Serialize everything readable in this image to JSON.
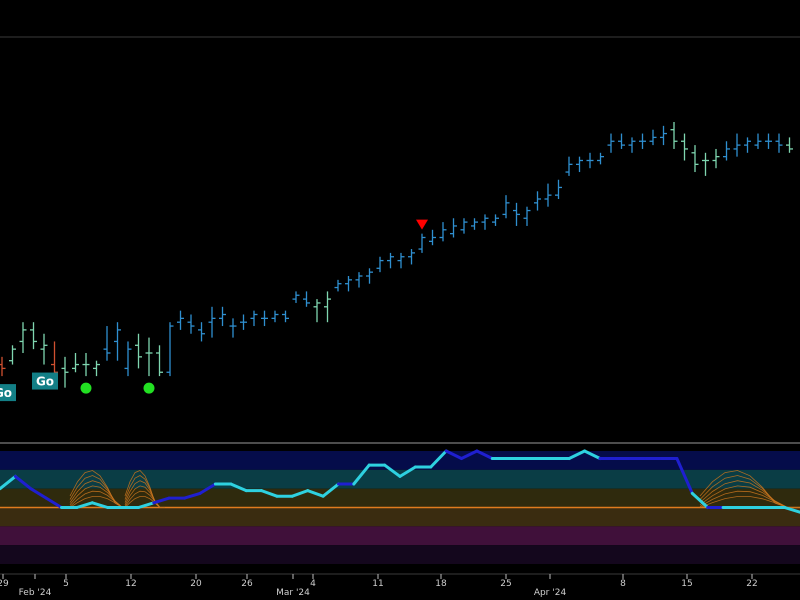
{
  "chart_data": [
    {
      "type": "ohlc",
      "panel": "price",
      "ylim": [
        0,
        100
      ],
      "grid": false,
      "up_color": "#2f8fd0",
      "weak_color": "#7fd6b0",
      "down_color": "#d05030",
      "bars": [
        {
          "i": 0,
          "o": 17,
          "h": 19,
          "l": 14,
          "c": 16,
          "t": "down"
        },
        {
          "i": 1,
          "o": 18,
          "h": 22,
          "l": 17,
          "c": 21,
          "t": "weak"
        },
        {
          "i": 2,
          "o": 23,
          "h": 28,
          "l": 20,
          "c": 26,
          "t": "weak"
        },
        {
          "i": 3,
          "o": 26,
          "h": 28,
          "l": 21,
          "c": 23,
          "t": "weak"
        },
        {
          "i": 4,
          "o": 21,
          "h": 25,
          "l": 17,
          "c": 22,
          "t": "weak"
        },
        {
          "i": 5,
          "o": 17,
          "h": 23,
          "l": 14,
          "c": 15,
          "t": "down"
        },
        {
          "i": 6,
          "o": 16,
          "h": 19,
          "l": 11,
          "c": 15,
          "t": "weak"
        },
        {
          "i": 7,
          "o": 16,
          "h": 20,
          "l": 15,
          "c": 17,
          "t": "weak"
        },
        {
          "i": 8,
          "o": 17,
          "h": 20,
          "l": 14,
          "c": 17,
          "t": "weak"
        },
        {
          "i": 9,
          "o": 16,
          "h": 18,
          "l": 14,
          "c": 17,
          "t": "weak"
        },
        {
          "i": 10,
          "o": 21,
          "h": 27,
          "l": 18,
          "c": 20,
          "t": "up"
        },
        {
          "i": 11,
          "o": 23,
          "h": 28,
          "l": 18,
          "c": 26,
          "t": "up"
        },
        {
          "i": 12,
          "o": 16,
          "h": 23,
          "l": 14,
          "c": 21,
          "t": "up"
        },
        {
          "i": 13,
          "o": 22,
          "h": 25,
          "l": 16,
          "c": 19,
          "t": "weak"
        },
        {
          "i": 14,
          "o": 20,
          "h": 24,
          "l": 14,
          "c": 20,
          "t": "weak"
        },
        {
          "i": 15,
          "o": 20,
          "h": 22,
          "l": 14,
          "c": 15,
          "t": "weak"
        },
        {
          "i": 16,
          "o": 15,
          "h": 28,
          "l": 14,
          "c": 27,
          "t": "up"
        },
        {
          "i": 17,
          "o": 28,
          "h": 31,
          "l": 26,
          "c": 29,
          "t": "up"
        },
        {
          "i": 18,
          "o": 28,
          "h": 30,
          "l": 25,
          "c": 27,
          "t": "up"
        },
        {
          "i": 19,
          "o": 26,
          "h": 28,
          "l": 23,
          "c": 25,
          "t": "up"
        },
        {
          "i": 20,
          "o": 28,
          "h": 32,
          "l": 24,
          "c": 29,
          "t": "up"
        },
        {
          "i": 21,
          "o": 29,
          "h": 32,
          "l": 27,
          "c": 30,
          "t": "up"
        },
        {
          "i": 22,
          "o": 27,
          "h": 29,
          "l": 24,
          "c": 27,
          "t": "up"
        },
        {
          "i": 23,
          "o": 28,
          "h": 30,
          "l": 26,
          "c": 28,
          "t": "up"
        },
        {
          "i": 24,
          "o": 29,
          "h": 31,
          "l": 27,
          "c": 30,
          "t": "up"
        },
        {
          "i": 25,
          "o": 29,
          "h": 31,
          "l": 27,
          "c": 29,
          "t": "up"
        },
        {
          "i": 26,
          "o": 29,
          "h": 31,
          "l": 28,
          "c": 30,
          "t": "up"
        },
        {
          "i": 27,
          "o": 30,
          "h": 31,
          "l": 28,
          "c": 29,
          "t": "up"
        },
        {
          "i": 28,
          "o": 34,
          "h": 36,
          "l": 33,
          "c": 35,
          "t": "up"
        },
        {
          "i": 29,
          "o": 34,
          "h": 36,
          "l": 32,
          "c": 33,
          "t": "up"
        },
        {
          "i": 30,
          "o": 32,
          "h": 34,
          "l": 28,
          "c": 33,
          "t": "weak"
        },
        {
          "i": 31,
          "o": 32,
          "h": 36,
          "l": 28,
          "c": 34,
          "t": "weak"
        },
        {
          "i": 32,
          "o": 37,
          "h": 39,
          "l": 36,
          "c": 38,
          "t": "up"
        },
        {
          "i": 33,
          "o": 38,
          "h": 40,
          "l": 36,
          "c": 39,
          "t": "up"
        },
        {
          "i": 34,
          "o": 39,
          "h": 41,
          "l": 37,
          "c": 40,
          "t": "up"
        },
        {
          "i": 35,
          "o": 40,
          "h": 42,
          "l": 38,
          "c": 41,
          "t": "up"
        },
        {
          "i": 36,
          "o": 42,
          "h": 45,
          "l": 41,
          "c": 44,
          "t": "up"
        },
        {
          "i": 37,
          "o": 44,
          "h": 46,
          "l": 42,
          "c": 45,
          "t": "up"
        },
        {
          "i": 38,
          "o": 44,
          "h": 46,
          "l": 42,
          "c": 45,
          "t": "up"
        },
        {
          "i": 39,
          "o": 45,
          "h": 47,
          "l": 43,
          "c": 46,
          "t": "up"
        },
        {
          "i": 40,
          "o": 47,
          "h": 51,
          "l": 46,
          "c": 50,
          "t": "up"
        },
        {
          "i": 41,
          "o": 49,
          "h": 52,
          "l": 48,
          "c": 50,
          "t": "up"
        },
        {
          "i": 42,
          "o": 50,
          "h": 54,
          "l": 49,
          "c": 52,
          "t": "up"
        },
        {
          "i": 43,
          "o": 51,
          "h": 55,
          "l": 50,
          "c": 53,
          "t": "up"
        },
        {
          "i": 44,
          "o": 52,
          "h": 55,
          "l": 51,
          "c": 54,
          "t": "up"
        },
        {
          "i": 45,
          "o": 53,
          "h": 55,
          "l": 52,
          "c": 54,
          "t": "up"
        },
        {
          "i": 46,
          "o": 54,
          "h": 56,
          "l": 52,
          "c": 55,
          "t": "up"
        },
        {
          "i": 47,
          "o": 54,
          "h": 56,
          "l": 53,
          "c": 55,
          "t": "up"
        },
        {
          "i": 48,
          "o": 56,
          "h": 61,
          "l": 55,
          "c": 59,
          "t": "up"
        },
        {
          "i": 49,
          "o": 57,
          "h": 59,
          "l": 53,
          "c": 56,
          "t": "up"
        },
        {
          "i": 50,
          "o": 55,
          "h": 58,
          "l": 53,
          "c": 57,
          "t": "up"
        },
        {
          "i": 51,
          "o": 59,
          "h": 62,
          "l": 57,
          "c": 60,
          "t": "up"
        },
        {
          "i": 52,
          "o": 60,
          "h": 64,
          "l": 58,
          "c": 61,
          "t": "up"
        },
        {
          "i": 53,
          "o": 61,
          "h": 65,
          "l": 60,
          "c": 63,
          "t": "up"
        },
        {
          "i": 54,
          "o": 67,
          "h": 71,
          "l": 66,
          "c": 69,
          "t": "up"
        },
        {
          "i": 55,
          "o": 69,
          "h": 71,
          "l": 67,
          "c": 70,
          "t": "up"
        },
        {
          "i": 56,
          "o": 70,
          "h": 72,
          "l": 68,
          "c": 70,
          "t": "up"
        },
        {
          "i": 57,
          "o": 70,
          "h": 72,
          "l": 69,
          "c": 71,
          "t": "up"
        },
        {
          "i": 58,
          "o": 74,
          "h": 77,
          "l": 72,
          "c": 75,
          "t": "up"
        },
        {
          "i": 59,
          "o": 75,
          "h": 77,
          "l": 73,
          "c": 74,
          "t": "up"
        },
        {
          "i": 60,
          "o": 74,
          "h": 76,
          "l": 72,
          "c": 75,
          "t": "up"
        },
        {
          "i": 61,
          "o": 75,
          "h": 77,
          "l": 73,
          "c": 75,
          "t": "up"
        },
        {
          "i": 62,
          "o": 75,
          "h": 78,
          "l": 74,
          "c": 76,
          "t": "up"
        },
        {
          "i": 63,
          "o": 76,
          "h": 79,
          "l": 74,
          "c": 77,
          "t": "up"
        },
        {
          "i": 64,
          "o": 78,
          "h": 80,
          "l": 73,
          "c": 75,
          "t": "weak"
        },
        {
          "i": 65,
          "o": 75,
          "h": 77,
          "l": 70,
          "c": 73,
          "t": "weak"
        },
        {
          "i": 66,
          "o": 72,
          "h": 74,
          "l": 67,
          "c": 69,
          "t": "weak"
        },
        {
          "i": 67,
          "o": 70,
          "h": 72,
          "l": 66,
          "c": 70,
          "t": "weak"
        },
        {
          "i": 68,
          "o": 70,
          "h": 73,
          "l": 68,
          "c": 71,
          "t": "weak"
        },
        {
          "i": 69,
          "o": 71,
          "h": 75,
          "l": 70,
          "c": 73,
          "t": "up"
        },
        {
          "i": 70,
          "o": 73,
          "h": 77,
          "l": 71,
          "c": 74,
          "t": "up"
        },
        {
          "i": 71,
          "o": 74,
          "h": 76,
          "l": 72,
          "c": 75,
          "t": "up"
        },
        {
          "i": 72,
          "o": 74,
          "h": 77,
          "l": 73,
          "c": 75,
          "t": "up"
        },
        {
          "i": 73,
          "o": 75,
          "h": 77,
          "l": 73,
          "c": 75,
          "t": "up"
        },
        {
          "i": 74,
          "o": 75,
          "h": 77,
          "l": 72,
          "c": 74,
          "t": "up"
        },
        {
          "i": 75,
          "o": 74,
          "h": 76,
          "l": 72,
          "c": 73,
          "t": "weak"
        }
      ],
      "signals": [
        {
          "kind": "go",
          "i": 0,
          "label": "Go"
        },
        {
          "kind": "go",
          "i": 4,
          "label": "Go"
        },
        {
          "kind": "dot",
          "i": 8,
          "color": "#22e022"
        },
        {
          "kind": "dot",
          "i": 14,
          "color": "#22e022"
        },
        {
          "kind": "triangle-down",
          "i": 40,
          "color": "#ff0000"
        }
      ]
    },
    {
      "type": "line",
      "panel": "oscillator",
      "ylim": [
        -6,
        6
      ],
      "zero_line_color": "#e07b1e",
      "zones": [
        {
          "from": 4,
          "to": 6,
          "color": "#050c4a"
        },
        {
          "from": 2,
          "to": 4,
          "color": "#0a3d45"
        },
        {
          "from": 0,
          "to": 2,
          "color": "#2f2a0d"
        },
        {
          "from": -2,
          "to": 0,
          "color": "#3a2c10"
        },
        {
          "from": -4,
          "to": -2,
          "color": "#40103a"
        },
        {
          "from": -6,
          "to": -4,
          "color": "#14071d"
        }
      ],
      "colors": {
        "strong": "#1f1fd0",
        "normal": "#2ed1e0"
      },
      "values": [
        2.0,
        3.3,
        2.0,
        1.0,
        0,
        0,
        0.5,
        0,
        0,
        0,
        0.5,
        1.0,
        1.0,
        1.5,
        2.5,
        2.5,
        1.8,
        1.8,
        1.2,
        1.2,
        1.8,
        1.2,
        2.5,
        2.5,
        4.5,
        4.5,
        3.3,
        4.3,
        4.3,
        6.0,
        5.2,
        6.0,
        5.2,
        5.2,
        5.2,
        5.2,
        5.2,
        5.2,
        6.0,
        5.2,
        5.2,
        5.2,
        5.2,
        5.2,
        5.2,
        1.5,
        0,
        0,
        0,
        0,
        0,
        0,
        -0.5
      ],
      "strong": [
        false,
        true,
        true,
        true,
        false,
        false,
        false,
        false,
        false,
        false,
        true,
        true,
        true,
        true,
        false,
        false,
        false,
        false,
        false,
        false,
        false,
        false,
        true,
        false,
        false,
        false,
        false,
        false,
        false,
        true,
        true,
        true,
        false,
        false,
        false,
        false,
        false,
        false,
        false,
        true,
        true,
        true,
        true,
        true,
        true,
        false,
        true,
        false,
        false,
        false,
        false,
        false,
        false
      ]
    }
  ],
  "x_ticks": [
    "29",
    "Feb '24",
    "5",
    "12",
    "20",
    "26",
    "Mar '24",
    "4",
    "11",
    "18",
    "25",
    "Apr '24",
    "8",
    "15",
    "22"
  ],
  "signal_labels": [
    "Go",
    "Go"
  ]
}
